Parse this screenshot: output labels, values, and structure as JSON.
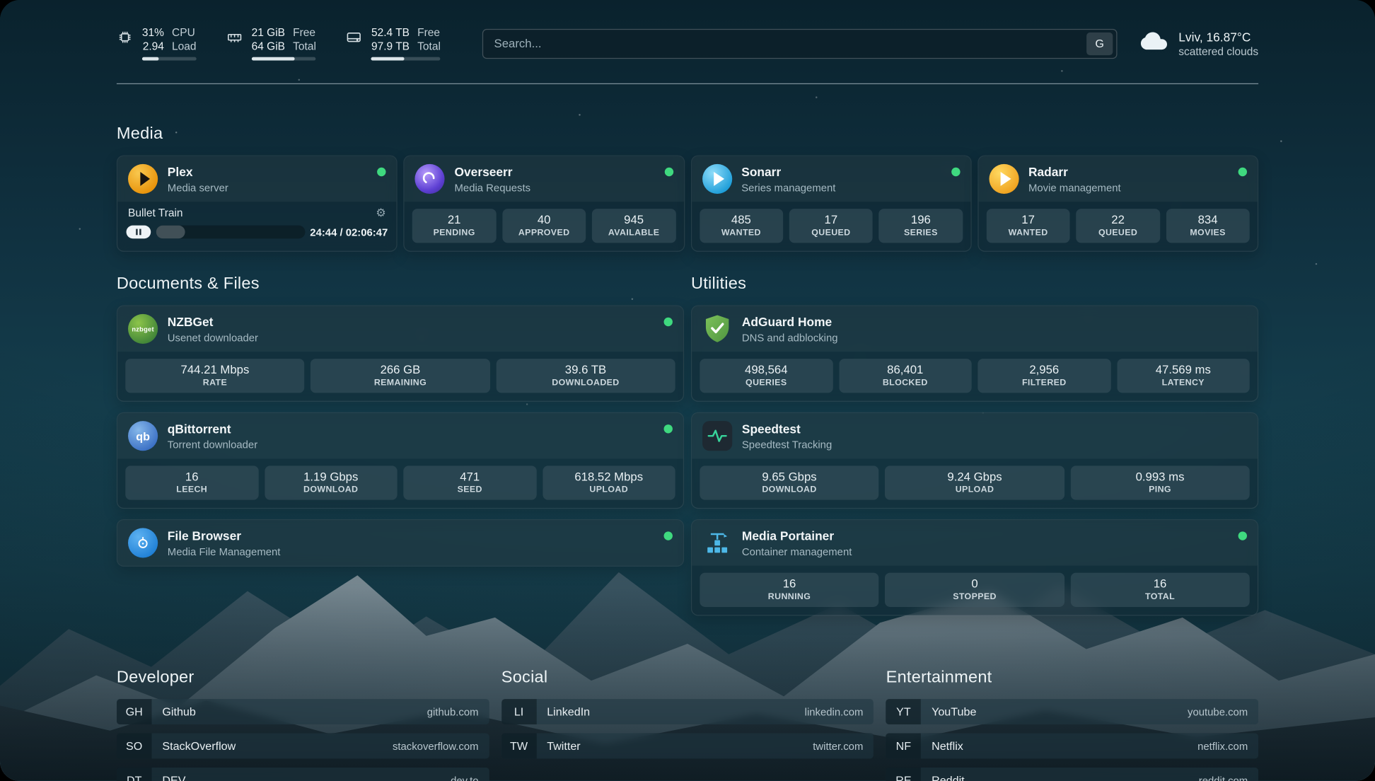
{
  "header": {
    "cpu": {
      "value_top": "31%",
      "value_bottom": "2.94",
      "label_top": "CPU",
      "label_bottom": "Load",
      "bar_percent": 31
    },
    "memory": {
      "value_top": "21 GiB",
      "value_bottom": "64 GiB",
      "label_top": "Free",
      "label_bottom": "Total",
      "bar_percent": 67
    },
    "disk": {
      "value_top": "52.4 TB",
      "value_bottom": "97.9 TB",
      "label_top": "Free",
      "label_bottom": "Total",
      "bar_percent": 47
    },
    "search": {
      "placeholder": "Search...",
      "provider": "G"
    },
    "weather": {
      "location": "Lviv, 16.87°C",
      "condition": "scattered clouds"
    }
  },
  "media": {
    "title": "Media",
    "plex": {
      "name": "Plex",
      "desc": "Media server",
      "now_playing": "Bullet Train",
      "time": "24:44 / 02:06:47",
      "progress_percent": 19.5
    },
    "overseerr": {
      "name": "Overseerr",
      "desc": "Media Requests",
      "stats": [
        {
          "value": "21",
          "label": "PENDING"
        },
        {
          "value": "40",
          "label": "APPROVED"
        },
        {
          "value": "945",
          "label": "AVAILABLE"
        }
      ]
    },
    "sonarr": {
      "name": "Sonarr",
      "desc": "Series management",
      "stats": [
        {
          "value": "485",
          "label": "WANTED"
        },
        {
          "value": "17",
          "label": "QUEUED"
        },
        {
          "value": "196",
          "label": "SERIES"
        }
      ]
    },
    "radarr": {
      "name": "Radarr",
      "desc": "Movie management",
      "stats": [
        {
          "value": "17",
          "label": "WANTED"
        },
        {
          "value": "22",
          "label": "QUEUED"
        },
        {
          "value": "834",
          "label": "MOVIES"
        }
      ]
    }
  },
  "documents": {
    "title": "Documents & Files",
    "nzbget": {
      "name": "NZBGet",
      "desc": "Usenet downloader",
      "icon_text": "nzbget",
      "stats": [
        {
          "value": "744.21 Mbps",
          "label": "RATE"
        },
        {
          "value": "266 GB",
          "label": "REMAINING"
        },
        {
          "value": "39.6 TB",
          "label": "DOWNLOADED"
        }
      ]
    },
    "qbittorrent": {
      "name": "qBittorrent",
      "desc": "Torrent downloader",
      "icon_text": "qb",
      "stats": [
        {
          "value": "16",
          "label": "LEECH"
        },
        {
          "value": "1.19 Gbps",
          "label": "DOWNLOAD"
        },
        {
          "value": "471",
          "label": "SEED"
        },
        {
          "value": "618.52 Mbps",
          "label": "UPLOAD"
        }
      ]
    },
    "filebrowser": {
      "name": "File Browser",
      "desc": "Media File Management"
    }
  },
  "utilities": {
    "title": "Utilities",
    "adguard": {
      "name": "AdGuard Home",
      "desc": "DNS and adblocking",
      "stats": [
        {
          "value": "498,564",
          "label": "QUERIES"
        },
        {
          "value": "86,401",
          "label": "BLOCKED"
        },
        {
          "value": "2,956",
          "label": "FILTERED"
        },
        {
          "value": "47.569 ms",
          "label": "LATENCY"
        }
      ]
    },
    "speedtest": {
      "name": "Speedtest",
      "desc": "Speedtest Tracking",
      "stats": [
        {
          "value": "9.65 Gbps",
          "label": "DOWNLOAD"
        },
        {
          "value": "9.24 Gbps",
          "label": "UPLOAD"
        },
        {
          "value": "0.993 ms",
          "label": "PING"
        }
      ]
    },
    "portainer": {
      "name": "Media Portainer",
      "desc": "Container management",
      "stats": [
        {
          "value": "16",
          "label": "RUNNING"
        },
        {
          "value": "0",
          "label": "STOPPED"
        },
        {
          "value": "16",
          "label": "TOTAL"
        }
      ]
    }
  },
  "bookmarks": {
    "developer": {
      "title": "Developer",
      "items": [
        {
          "abbr": "GH",
          "name": "Github",
          "url": "github.com"
        },
        {
          "abbr": "SO",
          "name": "StackOverflow",
          "url": "stackoverflow.com"
        },
        {
          "abbr": "DT",
          "name": "DEV",
          "url": "dev.to"
        }
      ]
    },
    "social": {
      "title": "Social",
      "items": [
        {
          "abbr": "LI",
          "name": "LinkedIn",
          "url": "linkedin.com"
        },
        {
          "abbr": "TW",
          "name": "Twitter",
          "url": "twitter.com"
        }
      ]
    },
    "entertainment": {
      "title": "Entertainment",
      "items": [
        {
          "abbr": "YT",
          "name": "YouTube",
          "url": "youtube.com"
        },
        {
          "abbr": "NF",
          "name": "Netflix",
          "url": "netflix.com"
        },
        {
          "abbr": "RE",
          "name": "Reddit",
          "url": "reddit.com"
        }
      ]
    }
  },
  "colors": {
    "status_online": "#3fd97f"
  }
}
